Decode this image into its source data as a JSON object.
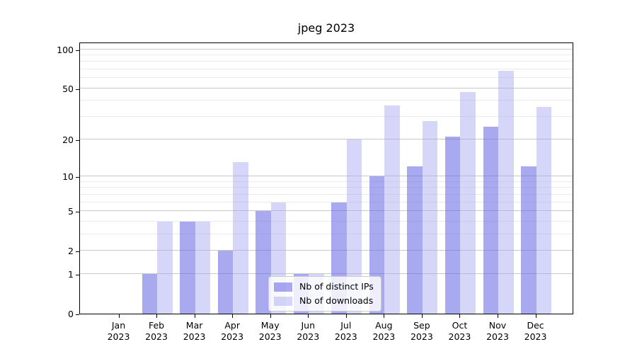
{
  "chart_data": {
    "type": "bar",
    "title": "jpeg 2023",
    "categories": [
      "Jan 2023",
      "Feb 2023",
      "Mar 2023",
      "Apr 2023",
      "May 2023",
      "Jun 2023",
      "Jul 2023",
      "Aug 2023",
      "Sep 2023",
      "Oct 2023",
      "Nov 2023",
      "Dec 2023"
    ],
    "series": [
      {
        "name": "Nb of distinct IPs",
        "color": "#6262E48C",
        "values": [
          0,
          1,
          4,
          2,
          5,
          1,
          6,
          10,
          12,
          21,
          25,
          12
        ]
      },
      {
        "name": "Nb of downloads",
        "color": "#A3A3F073",
        "values": [
          0,
          4,
          4,
          13,
          6,
          1,
          20,
          37,
          28,
          47,
          68,
          36
        ]
      }
    ],
    "xlabel": "",
    "ylabel": "",
    "yscale": "log10(1+y)",
    "ylim": [
      0,
      114
    ],
    "yticks": [
      0,
      1,
      2,
      5,
      10,
      20,
      50,
      100
    ],
    "yticks_minor": [
      3,
      4,
      6,
      7,
      8,
      9,
      30,
      40,
      60,
      70,
      80,
      90
    ],
    "grid": true,
    "legend_position": "lower center"
  },
  "styles": {
    "grid_major_color": "#c9c9c9",
    "grid_minor_color": "#ebebeb",
    "axis_color": "#000000",
    "background": "#ffffff",
    "legend_border_color": "#cccccc"
  }
}
